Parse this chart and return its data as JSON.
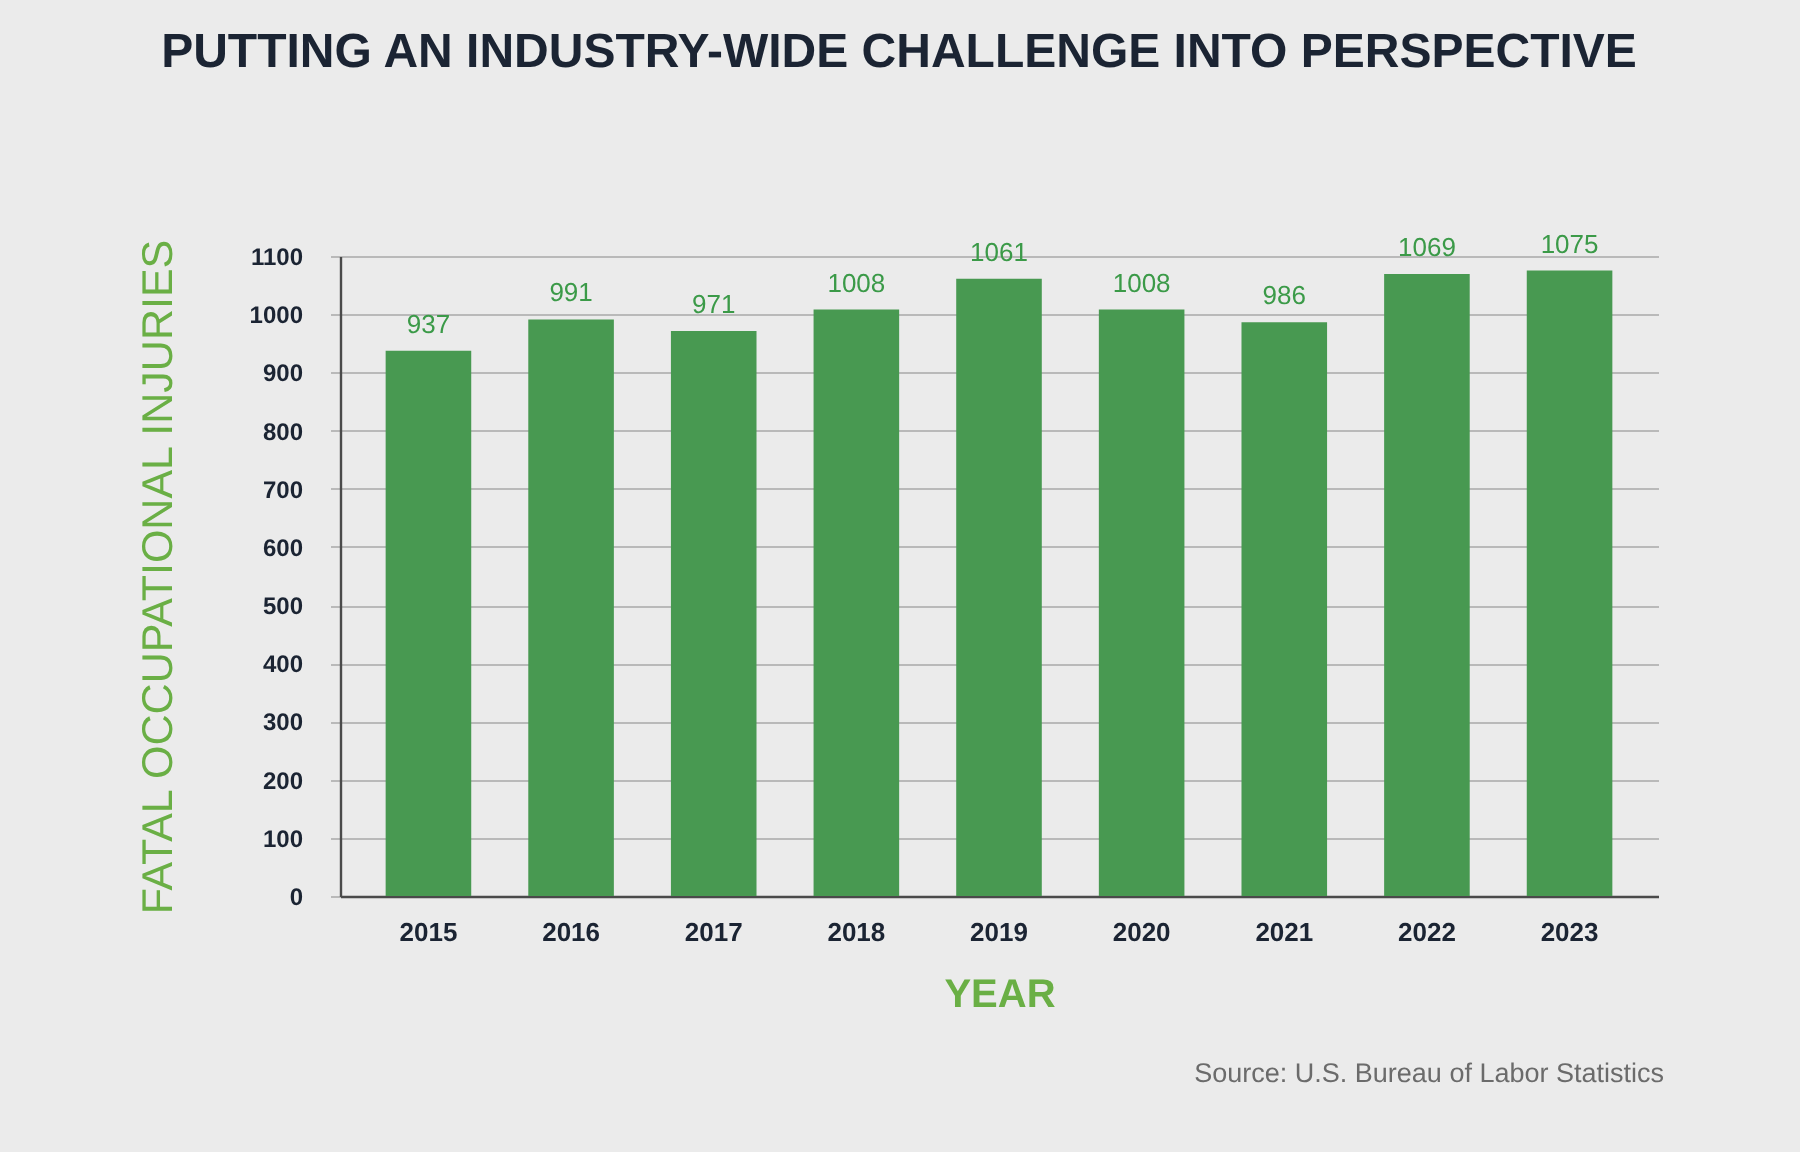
{
  "chart_data": {
    "type": "bar",
    "title": "PUTTING AN INDUSTRY-WIDE CHALLENGE INTO PERSPECTIVE",
    "xlabel": "YEAR",
    "ylabel": "FATAL OCCUPATIONAL INJURIES",
    "categories": [
      "2015",
      "2016",
      "2017",
      "2018",
      "2019",
      "2020",
      "2021",
      "2022",
      "2023"
    ],
    "values": [
      937,
      991,
      971,
      1008,
      1061,
      1008,
      986,
      1069,
      1075
    ],
    "color": "#489951",
    "ylim": [
      0,
      1100
    ],
    "yticks": [
      0,
      100,
      200,
      300,
      400,
      500,
      600,
      700,
      800,
      900,
      1000,
      1100
    ],
    "grid": "y",
    "data_labels": true,
    "annotations": [
      "Source: U.S. Bureau of Labor Statistics"
    ]
  }
}
